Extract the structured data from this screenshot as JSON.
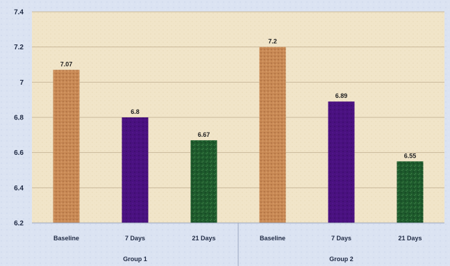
{
  "chart_data": {
    "type": "bar",
    "title": "",
    "xlabel": "",
    "ylabel": "",
    "ylim": [
      6.2,
      7.4
    ],
    "yticks": [
      "6.2",
      "6.4",
      "6.6",
      "6.8",
      "7",
      "7.2",
      "7.4"
    ],
    "grid": true,
    "groups": [
      {
        "label": "Group 1",
        "categories": [
          "Baseline",
          "7 Days",
          "21 Days"
        ],
        "values": [
          7.07,
          6.8,
          6.67
        ],
        "value_labels": [
          "7.07",
          "6.8",
          "6.67"
        ]
      },
      {
        "label": "Group 2",
        "categories": [
          "Baseline",
          "7 Days",
          "21 Days"
        ],
        "values": [
          7.2,
          6.89,
          6.55
        ],
        "value_labels": [
          "7.2",
          "6.89",
          "6.55"
        ]
      }
    ],
    "colors": {
      "Baseline": "#c98a55",
      "7 Days": "#4a1180",
      "21 Days": "#1e5a2c",
      "plot_background": "#f1e5c9",
      "gridline": "#c9b99a"
    }
  }
}
